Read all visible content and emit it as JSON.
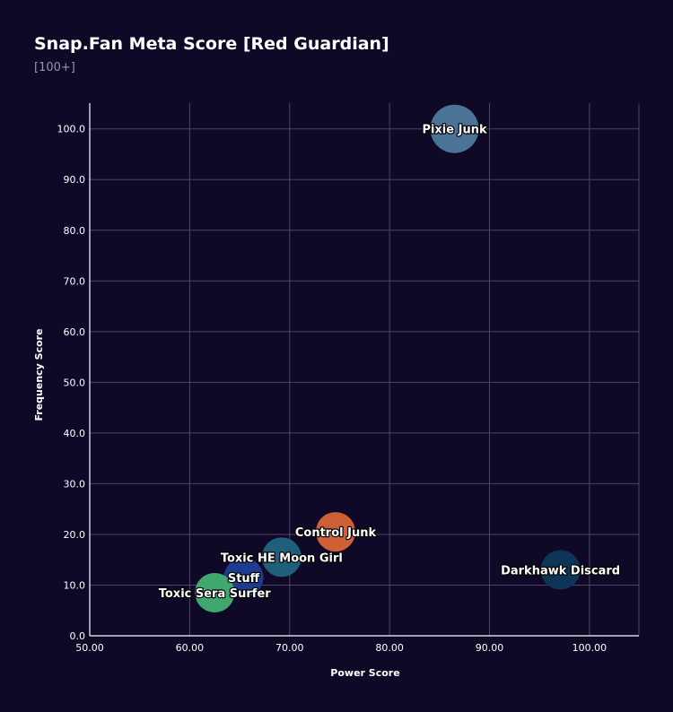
{
  "chart_data": {
    "type": "scatter",
    "title": "Snap.Fan Meta Score [Red Guardian]",
    "subtitle": "[100+]",
    "xlabel": "Power Score",
    "ylabel": "Frequency Score",
    "xlim": [
      50,
      105
    ],
    "ylim": [
      0,
      105
    ],
    "x_ticks": [
      "50.00",
      "60.00",
      "70.00",
      "80.00",
      "90.00",
      "100.00"
    ],
    "y_ticks": [
      "0.0",
      "10.0",
      "20.0",
      "30.0",
      "40.0",
      "50.0",
      "60.0",
      "70.0",
      "80.0",
      "90.0",
      "100.0"
    ],
    "grid": true,
    "colors": {
      "background": "#0f0826",
      "grid": "#4c4766",
      "axis": "#ffffff",
      "text": "#ffffff",
      "subtitle": "#9a95ad"
    },
    "points": [
      {
        "label": "Pixie Junk",
        "x": 86.5,
        "y": 100.0,
        "color": "#4a7396"
      },
      {
        "label": "Control Junk",
        "x": 74.6,
        "y": 20.5,
        "color": "#cf5f35"
      },
      {
        "label": "Toxic HE Moon Girl",
        "x": 69.2,
        "y": 15.5,
        "color": "#1f5f7a"
      },
      {
        "label": "Stuff",
        "x": 65.4,
        "y": 11.5,
        "color": "#1e3c8f"
      },
      {
        "label": "Toxic Sera Surfer",
        "x": 62.5,
        "y": 8.5,
        "color": "#3fa86f"
      },
      {
        "label": "Darkhawk Discard",
        "x": 97.1,
        "y": 13.0,
        "color": "#0d3557"
      }
    ]
  }
}
